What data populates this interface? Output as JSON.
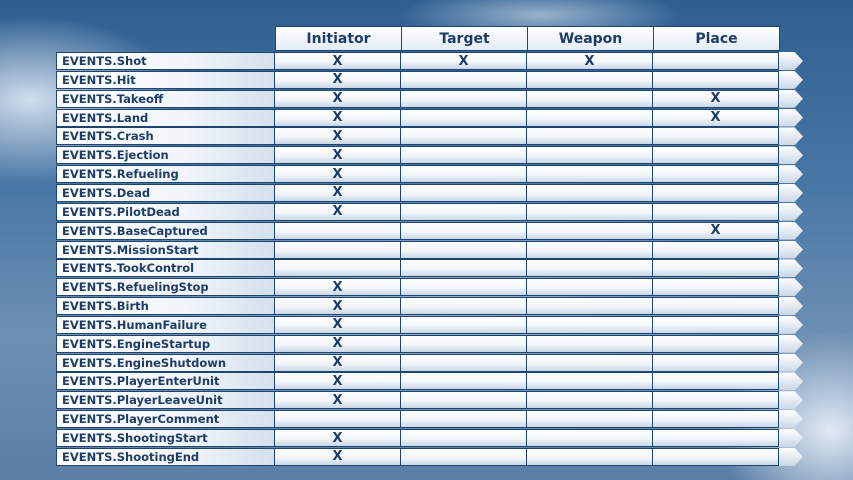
{
  "columns": [
    "Initiator",
    "Target",
    "Weapon",
    "Place"
  ],
  "rows": [
    {
      "event": "EVENTS.Shot",
      "marks": [
        "X",
        "X",
        "X",
        ""
      ]
    },
    {
      "event": "EVENTS.Hit",
      "marks": [
        "X",
        "",
        "",
        ""
      ]
    },
    {
      "event": "EVENTS.Takeoff",
      "marks": [
        "X",
        "",
        "",
        "X"
      ]
    },
    {
      "event": "EVENTS.Land",
      "marks": [
        "X",
        "",
        "",
        "X"
      ]
    },
    {
      "event": "EVENTS.Crash",
      "marks": [
        "X",
        "",
        "",
        ""
      ]
    },
    {
      "event": "EVENTS.Ejection",
      "marks": [
        "X",
        "",
        "",
        ""
      ]
    },
    {
      "event": "EVENTS.Refueling",
      "marks": [
        "X",
        "",
        "",
        ""
      ]
    },
    {
      "event": "EVENTS.Dead",
      "marks": [
        "X",
        "",
        "",
        ""
      ]
    },
    {
      "event": "EVENTS.PilotDead",
      "marks": [
        "X",
        "",
        "",
        ""
      ]
    },
    {
      "event": "EVENTS.BaseCaptured",
      "marks": [
        "",
        "",
        "",
        "X"
      ]
    },
    {
      "event": "EVENTS.MissionStart",
      "marks": [
        "",
        "",
        "",
        ""
      ]
    },
    {
      "event": "EVENTS.TookControl",
      "marks": [
        "",
        "",
        "",
        ""
      ]
    },
    {
      "event": "EVENTS.RefuelingStop",
      "marks": [
        "X",
        "",
        "",
        ""
      ]
    },
    {
      "event": "EVENTS.Birth",
      "marks": [
        "X",
        "",
        "",
        ""
      ]
    },
    {
      "event": "EVENTS.HumanFailure",
      "marks": [
        "X",
        "",
        "",
        ""
      ]
    },
    {
      "event": "EVENTS.EngineStartup",
      "marks": [
        "X",
        "",
        "",
        ""
      ]
    },
    {
      "event": "EVENTS.EngineShutdown",
      "marks": [
        "X",
        "",
        "",
        ""
      ]
    },
    {
      "event": "EVENTS.PlayerEnterUnit",
      "marks": [
        "X",
        "",
        "",
        ""
      ]
    },
    {
      "event": "EVENTS.PlayerLeaveUnit",
      "marks": [
        "X",
        "",
        "",
        ""
      ]
    },
    {
      "event": "EVENTS.PlayerComment",
      "marks": [
        "",
        "",
        "",
        ""
      ]
    },
    {
      "event": "EVENTS.ShootingStart",
      "marks": [
        "X",
        "",
        "",
        ""
      ]
    },
    {
      "event": "EVENTS.ShootingEnd",
      "marks": [
        "X",
        "",
        "",
        ""
      ]
    }
  ],
  "colors": {
    "border": "#1e4470",
    "text": "#1e3d66"
  }
}
